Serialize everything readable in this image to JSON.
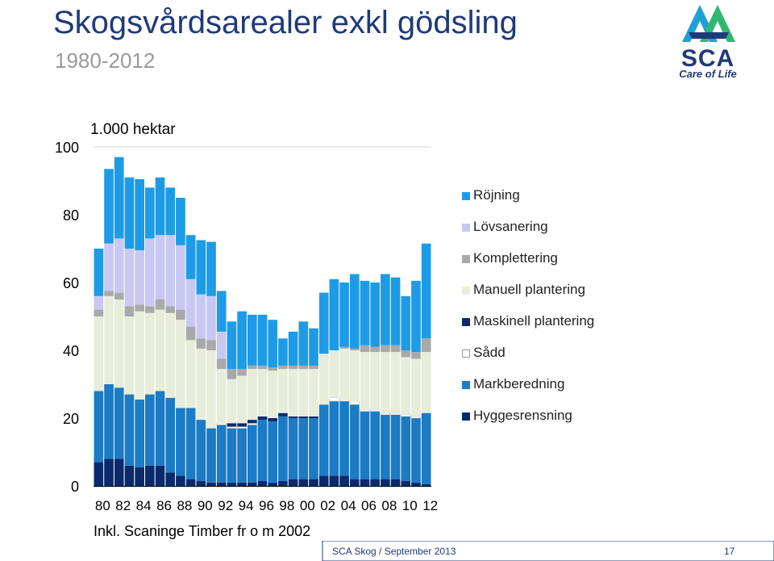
{
  "header": {
    "title": "Skogsvårdsarealer exkl gödsling",
    "subtitle": "1980-2012"
  },
  "logo": {
    "name": "SCA",
    "tagline": "Care of Life"
  },
  "chart_data": {
    "type": "bar",
    "stacked": true,
    "unit_label": "1.000 hektar",
    "note": "Inkl. Scaninge Timber fr o m 2002",
    "ylim": [
      0,
      100
    ],
    "y_ticks": [
      0,
      20,
      40,
      60,
      80,
      100
    ],
    "x_tick_labels": [
      "80",
      "82",
      "84",
      "86",
      "88",
      "90",
      "92",
      "94",
      "96",
      "98",
      "00",
      "02",
      "04",
      "06",
      "08",
      "10",
      "12"
    ],
    "categories": [
      "1980",
      "1981",
      "1982",
      "1983",
      "1984",
      "1985",
      "1986",
      "1987",
      "1988",
      "1989",
      "1990",
      "1991",
      "1992",
      "1993",
      "1994",
      "1995",
      "1996",
      "1997",
      "1998",
      "1999",
      "2000",
      "2001",
      "2002",
      "2003",
      "2004",
      "2005",
      "2006",
      "2007",
      "2008",
      "2009",
      "2010",
      "2011",
      "2012"
    ],
    "series": [
      {
        "name": "Hyggesrensning",
        "color": "#0b2a6b",
        "values": [
          7,
          8,
          8,
          6,
          5.5,
          6,
          6,
          4,
          3,
          2,
          1.5,
          1,
          1,
          1,
          1,
          1,
          1.5,
          1,
          1.5,
          2,
          2,
          2,
          3,
          3,
          3,
          2,
          2,
          2,
          2,
          2,
          1.5,
          1,
          0.5
        ]
      },
      {
        "name": "Markberedning",
        "color": "#1b7bc4",
        "values": [
          21,
          22,
          21,
          21,
          20,
          21,
          22,
          22,
          20,
          21,
          18,
          16,
          17,
          16,
          16,
          17,
          18,
          18,
          19,
          18,
          18,
          18,
          21,
          22,
          22,
          22,
          20,
          20,
          19,
          19,
          19,
          19,
          21
        ]
      },
      {
        "name": "Sådd",
        "color": "#ffffff",
        "values": [
          0,
          0,
          0,
          0,
          0,
          0,
          0,
          0,
          0,
          0,
          0,
          0,
          0.5,
          0.5,
          0.5,
          0.5,
          0,
          0,
          0,
          0,
          0,
          0,
          0,
          1,
          0.5,
          1,
          0.5,
          0.5,
          0.5,
          0.5,
          0.5,
          0.5,
          0
        ]
      },
      {
        "name": "Maskinell plantering",
        "color": "#0b2a6b",
        "values": [
          0,
          0,
          0,
          0,
          0,
          0,
          0,
          0,
          0,
          0,
          0,
          0,
          0,
          1,
          1,
          1,
          1,
          1,
          1,
          0.5,
          0.5,
          0.5,
          0,
          0,
          0,
          0,
          0,
          0,
          0,
          0,
          0,
          0,
          0
        ]
      },
      {
        "name": "Manuell plantering",
        "color": "#e8eddb",
        "values": [
          22,
          26,
          26,
          23,
          26,
          24,
          24,
          25,
          26,
          20,
          21,
          23,
          16,
          13,
          14,
          15,
          14,
          14,
          13,
          14,
          14,
          14,
          15,
          14,
          15,
          15,
          17,
          17,
          18,
          18,
          17,
          17,
          18
        ]
      },
      {
        "name": "Komplettering",
        "color": "#a9a9a9",
        "values": [
          2,
          1.5,
          2,
          3,
          2,
          2,
          3,
          2,
          3,
          4,
          3,
          3,
          3,
          3,
          2,
          1,
          1,
          1,
          1,
          1,
          1,
          1,
          0,
          0,
          0.5,
          0.5,
          2,
          1.5,
          2,
          2,
          2,
          2,
          4
        ]
      },
      {
        "name": "Lövsanering",
        "color": "#c8c8f2",
        "values": [
          4,
          14,
          16,
          17,
          16,
          20,
          19,
          21,
          19,
          14,
          13,
          13,
          8,
          0,
          0,
          0,
          0,
          0,
          0,
          0,
          0,
          0,
          0,
          0,
          0,
          0,
          0,
          0,
          0,
          0,
          0,
          0,
          0
        ]
      },
      {
        "name": "Röjning",
        "color": "#1e9be6",
        "values": [
          14,
          22,
          24,
          21,
          21,
          15,
          17,
          14,
          14,
          13,
          16,
          16,
          12,
          14,
          17,
          15,
          15,
          14,
          8,
          10,
          13,
          11,
          18,
          21,
          19,
          22,
          19,
          19,
          21,
          20,
          16,
          21,
          28
        ]
      }
    ]
  },
  "footer": {
    "text": "SCA Skog / September 2013",
    "page": "17"
  }
}
